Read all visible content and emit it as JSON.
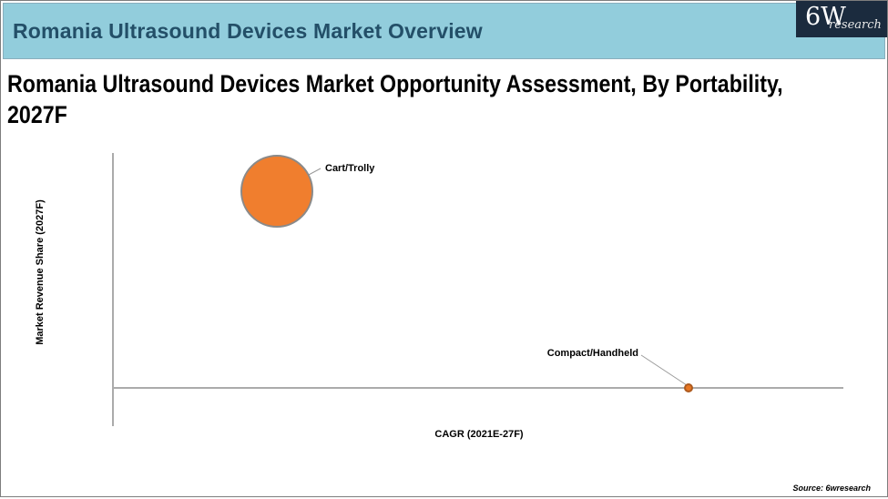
{
  "header": {
    "title": "Romania Ultrasound Devices Market Overview"
  },
  "logo": {
    "main": "6W",
    "sub": "research"
  },
  "subtitle": {
    "line1": "Romania Ultrasound Devices Market Opportunity Assessment, By Portability,",
    "line2": "2027F"
  },
  "chart_data": {
    "type": "scatter",
    "subtype": "bubble",
    "title": "Romania Ultrasound Devices Market Opportunity Assessment, By Portability, 2027F",
    "xlabel": "CAGR (2021E-27F)",
    "ylabel": "Market Revenue Share (2027F)",
    "axis_ticks": "none",
    "legend": "none",
    "plot_area_frac_note": "axes are unlabeled; positions estimated as fractions of axis ranges",
    "series": [
      {
        "name": "Cart/Trolly",
        "x_frac": 0.225,
        "y_frac": 0.84,
        "radius_px": 40,
        "color": "#F07E2E"
      },
      {
        "name": "Compact/Handheld",
        "x_frac": 0.788,
        "y_frac": 0.0,
        "radius_px": 5,
        "color": "#E87722"
      }
    ]
  },
  "source": {
    "label": "Source: 6wresearch"
  },
  "colors": {
    "header_bg": "#92CDDC",
    "header_text": "#234F68",
    "logo_bg": "#1B2B3E",
    "bubble_fill": "#ED7D31",
    "axis_line": "#ABABAB"
  }
}
